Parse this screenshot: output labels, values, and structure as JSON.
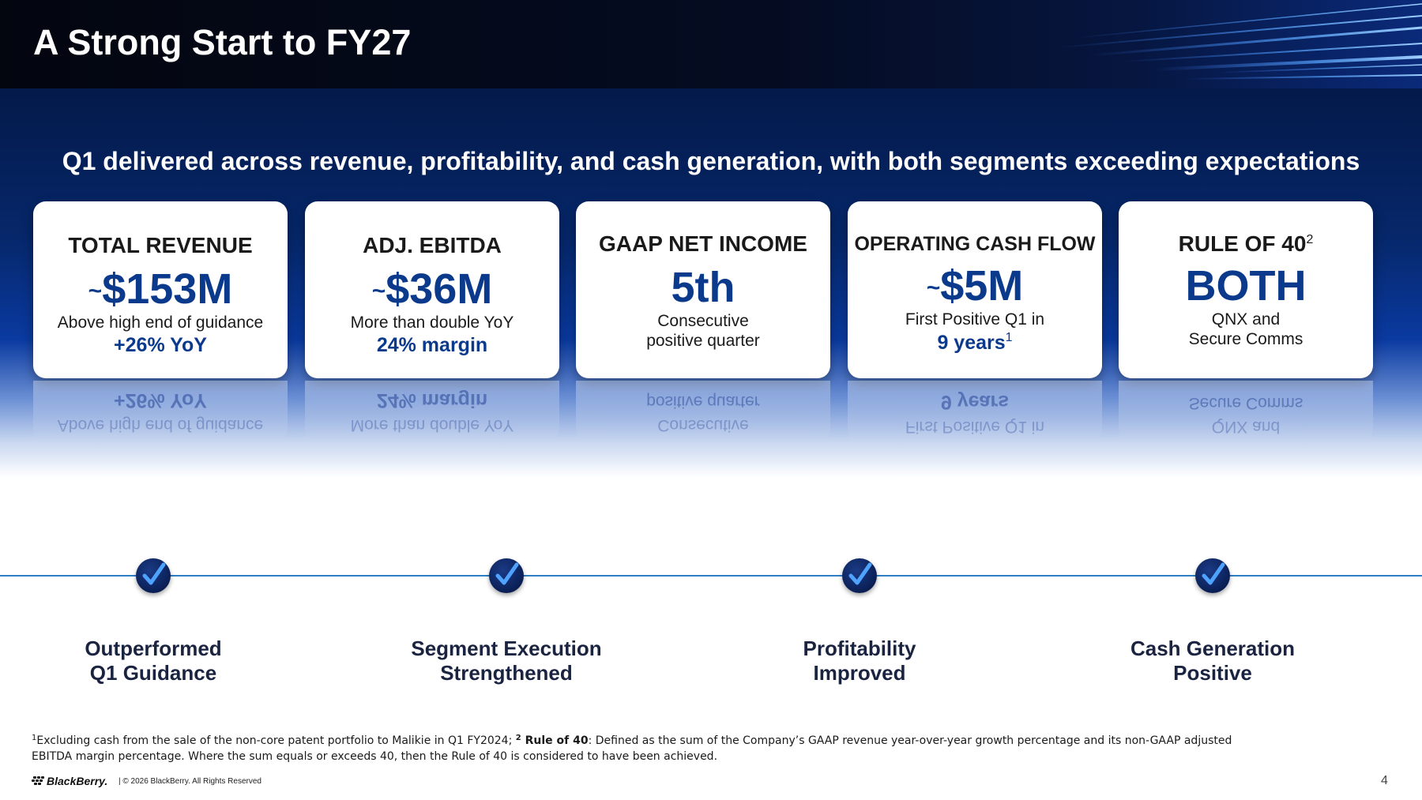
{
  "title": "A Strong Start to FY27",
  "subtitle": "Q1 delivered across revenue, profitability, and cash generation, with both segments exceeding expectations",
  "cards": [
    {
      "label": "TOTAL REVENUE",
      "tilde": "~",
      "value": "$153M",
      "line1": "Above high end of guidance",
      "accent": "+26% YoY"
    },
    {
      "label": "ADJ. EBITDA",
      "tilde": "~",
      "value": "$36M",
      "line1": "More than double YoY",
      "accent": "24% margin"
    },
    {
      "label": "GAAP NET INCOME",
      "value": "5th",
      "line1": "Consecutive",
      "line2": "positive quarter"
    },
    {
      "label": "OPERATING CASH FLOW",
      "tilde": "~",
      "value": "$5M",
      "line1": "First Positive Q1 in",
      "accent": "9 years",
      "accent_sup": "1"
    },
    {
      "label": "RULE OF 40",
      "label_sup": "2",
      "value": "BOTH",
      "line1": "QNX and",
      "line2": "Secure Comms"
    }
  ],
  "milestones": [
    {
      "line1": "Outperformed",
      "line2": "Q1 Guidance",
      "icon": "checkmark-icon"
    },
    {
      "line1": "Segment Execution",
      "line2": "Strengthened",
      "icon": "checkmark-icon"
    },
    {
      "line1": "Profitability",
      "line2": "Improved",
      "icon": "checkmark-icon"
    },
    {
      "line1": "Cash Generation",
      "line2": "Positive",
      "icon": "checkmark-icon"
    }
  ],
  "footnote": {
    "sup1": "1",
    "text1": "Excluding cash from the sale of the non-core patent portfolio to Malikie in Q1 FY2024; ",
    "sup2": "2",
    "bold2": " Rule of 40",
    "text2": ": Defined as the sum of the Company’s GAAP revenue year-over-year growth percentage and its non-GAAP adjusted EBITDA margin percentage. Where the sum equals or exceeds 40, then the Rule of 40 is considered to have been achieved."
  },
  "footer": {
    "logo": "BlackBerry.",
    "copyright": "|  © 2026 BlackBerry. All Rights Reserved",
    "page_number": "4"
  },
  "colors": {
    "brand_blue": "#0b3a8c",
    "timeline": "#2e7fc4",
    "check_circle": "#0a1f55"
  }
}
